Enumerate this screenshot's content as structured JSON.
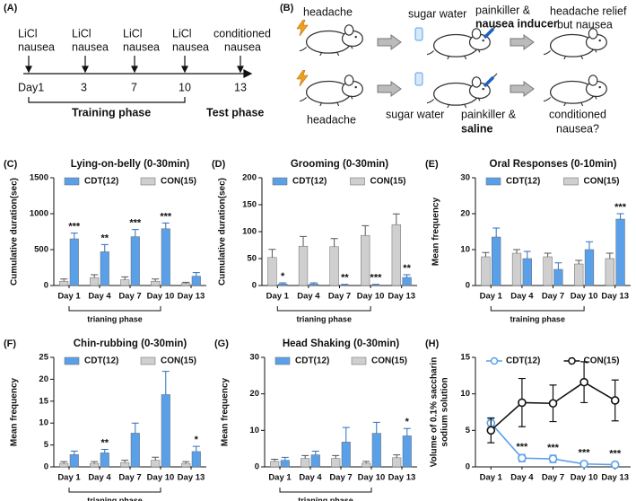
{
  "panel_a": {
    "label": "(A)",
    "events": [
      [
        "LiCl",
        "nausea"
      ],
      [
        "LiCl",
        "nausea"
      ],
      [
        "LiCl",
        "nausea"
      ],
      [
        "LiCl",
        "nausea"
      ],
      [
        "conditioned",
        "nausea"
      ]
    ],
    "days": [
      "Day1",
      "3",
      "7",
      "10",
      "13"
    ],
    "phases": [
      "Training phase",
      "Test phase"
    ]
  },
  "panel_b": {
    "label": "(B)",
    "rows": [
      {
        "condition": "headache",
        "solution": "sugar water",
        "treatment": [
          "painkiller &",
          "nausea inducer"
        ],
        "outcome": [
          "headache relief",
          "but nausea"
        ]
      },
      {
        "condition": "headache",
        "solution": "sugar water",
        "treatment": [
          "painkiller &",
          "saline"
        ],
        "outcome": [
          "conditioned",
          "nausea?"
        ]
      }
    ]
  },
  "chart_data": [
    {
      "type": "bar",
      "panel": "(C)",
      "title": "Lying-on-belly (0-30min)",
      "y_label": "Cumulative duration(sec)",
      "bracket_label": "trianing phase",
      "categories": [
        "Day 1",
        "Day 4",
        "Day 7",
        "Day 10",
        "Day 13"
      ],
      "ylim": [
        0,
        1500
      ],
      "yticks": [
        0,
        500,
        1000,
        1500
      ],
      "series": [
        {
          "name": "CDT(12)",
          "color": "#5aa0e8",
          "values": [
            650,
            470,
            680,
            790,
            130
          ],
          "errors": [
            80,
            100,
            100,
            80,
            50
          ],
          "significance": [
            "***",
            "**",
            "***",
            "***",
            null
          ]
        },
        {
          "name": "CON(15)",
          "color": "#cfcfcf",
          "values": [
            60,
            110,
            80,
            60,
            30
          ],
          "errors": [
            30,
            40,
            40,
            30,
            15
          ]
        }
      ]
    },
    {
      "type": "bar",
      "panel": "(D)",
      "title": "Grooming (0-30min)",
      "y_label": "Cumulative duration(sec)",
      "bracket_label": "trianing phase",
      "categories": [
        "Day 1",
        "Day 4",
        "Day 7",
        "Day 10",
        "Day 13"
      ],
      "ylim": [
        0,
        200
      ],
      "yticks": [
        0,
        50,
        100,
        150,
        200
      ],
      "series": [
        {
          "name": "CDT(12)",
          "color": "#5aa0e8",
          "values": [
            3,
            3,
            1,
            1,
            15
          ],
          "errors": [
            2,
            2,
            1,
            1,
            5
          ],
          "significance": [
            "*",
            null,
            "**",
            "***",
            "**"
          ]
        },
        {
          "name": "CON(15)",
          "color": "#cfcfcf",
          "values": [
            52,
            73,
            72,
            93,
            113
          ],
          "errors": [
            15,
            18,
            15,
            18,
            20
          ]
        }
      ]
    },
    {
      "type": "bar",
      "panel": "(E)",
      "title": "Oral Responses (0-10min)",
      "y_label": "Mean frequency",
      "bracket_label": "training phase",
      "categories": [
        "Day 1",
        "Day 4",
        "Day 7",
        "Day 10",
        "Day 13"
      ],
      "ylim": [
        0,
        30
      ],
      "yticks": [
        0,
        10,
        20,
        30
      ],
      "series": [
        {
          "name": "CDT(12)",
          "color": "#5aa0e8",
          "values": [
            13.5,
            7.5,
            4.5,
            10,
            18.5
          ],
          "errors": [
            2.5,
            2,
            1.8,
            2.2,
            1.5
          ],
          "significance": [
            null,
            null,
            null,
            null,
            "***"
          ]
        },
        {
          "name": "CON(15)",
          "color": "#cfcfcf",
          "values": [
            8,
            9,
            8,
            6,
            7.5
          ],
          "errors": [
            1.2,
            1,
            1,
            1,
            1.5
          ]
        }
      ]
    },
    {
      "type": "bar",
      "panel": "(F)",
      "title": "Chin-rubbing (0-30min)",
      "y_label": "Mean frequency",
      "bracket_label": "trianing phase",
      "categories": [
        "Day 1",
        "Day 4",
        "Day 7",
        "Day 10",
        "Day 13"
      ],
      "ylim": [
        0,
        25
      ],
      "yticks": [
        0,
        5,
        10,
        15,
        20,
        25
      ],
      "series": [
        {
          "name": "CDT(12)",
          "color": "#5aa0e8",
          "values": [
            2.8,
            3.2,
            7.7,
            16.5,
            3.5
          ],
          "errors": [
            0.8,
            0.8,
            2.3,
            5.3,
            1.2
          ],
          "significance": [
            null,
            "**",
            null,
            null,
            "*"
          ]
        },
        {
          "name": "CON(15)",
          "color": "#cfcfcf",
          "values": [
            0.8,
            0.8,
            1,
            1.5,
            0.8
          ],
          "errors": [
            0.4,
            0.4,
            0.5,
            0.7,
            0.4
          ]
        }
      ]
    },
    {
      "type": "bar",
      "panel": "(G)",
      "title": "Head Shaking (0-30min)",
      "y_label": "Mean frequency",
      "bracket_label": "trianing phase",
      "categories": [
        "Day 1",
        "Day 4",
        "Day 7",
        "Day 10",
        "Day 13"
      ],
      "ylim": [
        0,
        30
      ],
      "yticks": [
        0,
        10,
        20,
        30
      ],
      "series": [
        {
          "name": "CDT(12)",
          "color": "#5aa0e8",
          "values": [
            1.8,
            3.3,
            6.8,
            9.2,
            8.5
          ],
          "errors": [
            0.8,
            1,
            4,
            3,
            2
          ],
          "significance": [
            null,
            null,
            null,
            null,
            "*"
          ]
        },
        {
          "name": "CON(15)",
          "color": "#cfcfcf",
          "values": [
            1.5,
            2.3,
            2.3,
            1,
            2.5
          ],
          "errors": [
            0.6,
            0.8,
            0.8,
            0.5,
            0.8
          ]
        }
      ]
    },
    {
      "type": "line",
      "panel": "(H)",
      "y_label": [
        "Volume of 0.1% saccharin",
        "sodium solution"
      ],
      "categories": [
        "Day 1",
        "Day 4",
        "Day 7",
        "Day 10",
        "Day 13"
      ],
      "ylim": [
        0,
        15
      ],
      "yticks": [
        0,
        5,
        10,
        15
      ],
      "series": [
        {
          "name": "CDT(12)",
          "color": "#5aa0e8",
          "values": [
            6,
            1.2,
            1.1,
            0.4,
            0.3
          ],
          "errors": [
            0.6,
            0.5,
            0.5,
            0.3,
            0.2
          ],
          "significance": [
            null,
            "***",
            "***",
            "***",
            "***"
          ]
        },
        {
          "name": "CON(15)",
          "color": "#111111",
          "values": [
            5,
            8.8,
            8.7,
            11.6,
            9.1
          ],
          "errors": [
            1.7,
            3.3,
            2.5,
            2.8,
            2.8
          ]
        }
      ]
    }
  ]
}
